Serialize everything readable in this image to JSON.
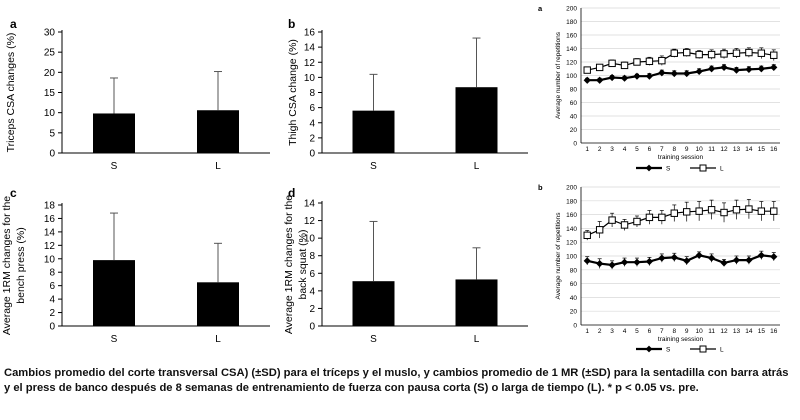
{
  "caption": "Cambios promedio del corte transversal CSA) (±SD) para el tríceps y el muslo, y cambios promedio de 1 MR (±SD) para la sentadilla con barra atrás y el press de banco después de 8 semanas de entrenamiento de fuerza con pausa corta (S) o larga de tiempo (L). * p < 0.05 vs. pre.",
  "colors": {
    "bar": "#000000",
    "axis": "#000000",
    "grid": "#d9d9d9"
  },
  "chart_data": [
    {
      "panel": "a",
      "type": "bar",
      "ylabel": [
        "Triceps CSA changes (%)"
      ],
      "categories": [
        "S",
        "L"
      ],
      "values": [
        9.8,
        10.6
      ],
      "errors": [
        8.8,
        9.6
      ],
      "ylim": [
        0,
        30
      ],
      "yticks": [
        0,
        5,
        10,
        15,
        20,
        25,
        30
      ]
    },
    {
      "panel": "b",
      "type": "bar",
      "ylabel": [
        "Thigh CSA change (%)"
      ],
      "categories": [
        "S",
        "L"
      ],
      "values": [
        5.6,
        8.7
      ],
      "errors": [
        4.8,
        6.5
      ],
      "ylim": [
        0,
        16
      ],
      "yticks": [
        0,
        2,
        4,
        6,
        8,
        10,
        12,
        14,
        16
      ]
    },
    {
      "panel": "c",
      "type": "bar",
      "ylabel": [
        "Average 1RM changes for the",
        "bench press (%)"
      ],
      "categories": [
        "S",
        "L"
      ],
      "values": [
        9.8,
        6.5
      ],
      "errors": [
        7.0,
        5.8
      ],
      "ylim": [
        0,
        18
      ],
      "yticks": [
        0,
        2,
        4,
        6,
        8,
        10,
        12,
        14,
        16,
        18
      ]
    },
    {
      "panel": "d",
      "type": "bar",
      "ylabel": [
        "Average 1RM changes for the",
        "back squat (%)"
      ],
      "categories": [
        "S",
        "L"
      ],
      "values": [
        5.1,
        5.3
      ],
      "errors": [
        6.8,
        3.6
      ],
      "ylim": [
        0,
        14
      ],
      "yticks": [
        0,
        2,
        4,
        6,
        8,
        10,
        12,
        14
      ]
    },
    {
      "panel": "a",
      "type": "line",
      "ylabel": "Average number of repetitions",
      "xlabel": "training session",
      "x": [
        1,
        2,
        3,
        4,
        5,
        6,
        7,
        8,
        9,
        10,
        11,
        12,
        13,
        14,
        15,
        16
      ],
      "ylim": [
        0,
        200
      ],
      "yticks": [
        0,
        20,
        40,
        60,
        80,
        100,
        120,
        140,
        160,
        180,
        200
      ],
      "series": [
        {
          "name": "S",
          "marker": "filled-diamond",
          "values": [
            93,
            93,
            97,
            96,
            99,
            99,
            104,
            103,
            103,
            106,
            110,
            112,
            108,
            109,
            110,
            112
          ],
          "errors": [
            3,
            3,
            3,
            3,
            3,
            4,
            4,
            4,
            4,
            4,
            4,
            4,
            4,
            4,
            4,
            4
          ]
        },
        {
          "name": "L",
          "marker": "open-square",
          "values": [
            108,
            112,
            118,
            115,
            120,
            121,
            122,
            133,
            134,
            131,
            131,
            132,
            133,
            134,
            133,
            130
          ],
          "errors": [
            4,
            4,
            5,
            5,
            5,
            6,
            7,
            6,
            6,
            6,
            7,
            7,
            7,
            7,
            8,
            8
          ]
        }
      ],
      "legend": "bottom"
    },
    {
      "panel": "b",
      "type": "line",
      "ylabel": "Average number of repetitions",
      "xlabel": "training session",
      "x": [
        1,
        2,
        3,
        4,
        5,
        6,
        7,
        8,
        9,
        10,
        11,
        12,
        13,
        14,
        15,
        16
      ],
      "ylim": [
        0,
        200
      ],
      "yticks": [
        0,
        20,
        40,
        60,
        80,
        100,
        120,
        140,
        160,
        180,
        200
      ],
      "series": [
        {
          "name": "S",
          "marker": "filled-diamond",
          "values": [
            93,
            89,
            87,
            91,
            91,
            92,
            97,
            98,
            93,
            101,
            97,
            90,
            94,
            94,
            101,
            99
          ],
          "errors": [
            6,
            7,
            6,
            6,
            6,
            6,
            6,
            6,
            6,
            5,
            6,
            5,
            6,
            6,
            6,
            6
          ]
        },
        {
          "name": "L",
          "marker": "open-square",
          "values": [
            130,
            138,
            152,
            145,
            150,
            156,
            156,
            162,
            164,
            165,
            167,
            163,
            167,
            168,
            165,
            165
          ],
          "errors": [
            7,
            12,
            10,
            8,
            8,
            10,
            10,
            12,
            14,
            14,
            14,
            14,
            14,
            14,
            14,
            14
          ]
        }
      ],
      "legend": "bottom"
    }
  ]
}
